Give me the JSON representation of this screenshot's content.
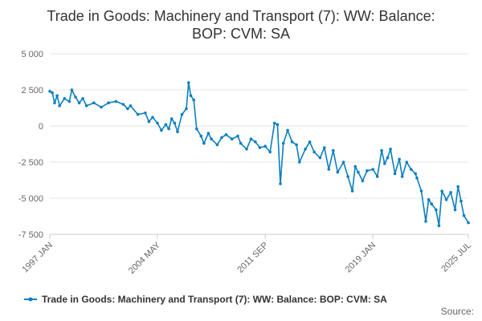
{
  "chart_data": {
    "type": "line",
    "title_lines": [
      "Trade in Goods: Machinery and Transport (7): WW: Balance:",
      "BOP: CVM: SA"
    ],
    "xlabel": "",
    "ylabel": "",
    "x_ticks": [
      {
        "label": "1997 JAN",
        "t": 1997.0
      },
      {
        "label": "2004 MAY",
        "t": 2004.33
      },
      {
        "label": "2011 SEP",
        "t": 2011.67
      },
      {
        "label": "2019 JAN",
        "t": 2019.0
      },
      {
        "label": "2025 JUL",
        "t": 2025.5
      }
    ],
    "y_ticks": [
      {
        "label": "5 000",
        "v": 5000
      },
      {
        "label": "2 500",
        "v": 2500
      },
      {
        "label": "0",
        "v": 0
      },
      {
        "label": "-2 500",
        "v": -2500
      },
      {
        "label": "-5 000",
        "v": -5000
      },
      {
        "label": "-7 500",
        "v": -7500
      }
    ],
    "ylim": [
      -7500,
      5000
    ],
    "xlim": [
      1997.0,
      2025.5
    ],
    "grid": "horizontal",
    "legend_position": "bottom-center",
    "series": [
      {
        "name": "Trade in Goods: Machinery and Transport (7): WW: Balance: BOP: CVM: SA",
        "color": "#0a7fbf",
        "points": [
          [
            1997.0,
            2400
          ],
          [
            1997.17,
            2300
          ],
          [
            1997.33,
            1600
          ],
          [
            1997.5,
            2100
          ],
          [
            1997.67,
            1400
          ],
          [
            1998.0,
            1900
          ],
          [
            1998.33,
            1700
          ],
          [
            1998.5,
            2500
          ],
          [
            1998.75,
            2000
          ],
          [
            1999.0,
            1600
          ],
          [
            1999.25,
            1900
          ],
          [
            1999.5,
            1400
          ],
          [
            2000.0,
            1600
          ],
          [
            2000.5,
            1300
          ],
          [
            2001.0,
            1600
          ],
          [
            2001.5,
            1700
          ],
          [
            2002.0,
            1500
          ],
          [
            2002.3,
            1200
          ],
          [
            2002.5,
            1400
          ],
          [
            2003.0,
            800
          ],
          [
            2003.5,
            900
          ],
          [
            2003.75,
            300
          ],
          [
            2004.0,
            600
          ],
          [
            2004.33,
            200
          ],
          [
            2004.6,
            -300
          ],
          [
            2004.9,
            100
          ],
          [
            2005.1,
            -200
          ],
          [
            2005.3,
            500
          ],
          [
            2005.5,
            200
          ],
          [
            2005.7,
            -400
          ],
          [
            2006.0,
            800
          ],
          [
            2006.3,
            1200
          ],
          [
            2006.45,
            3000
          ],
          [
            2006.6,
            2100
          ],
          [
            2006.8,
            1800
          ],
          [
            2007.0,
            -200
          ],
          [
            2007.3,
            -700
          ],
          [
            2007.5,
            -1200
          ],
          [
            2007.8,
            -500
          ],
          [
            2008.0,
            -900
          ],
          [
            2008.4,
            -1300
          ],
          [
            2008.7,
            -800
          ],
          [
            2009.0,
            -600
          ],
          [
            2009.4,
            -900
          ],
          [
            2009.8,
            -700
          ],
          [
            2010.0,
            -1200
          ],
          [
            2010.4,
            -1600
          ],
          [
            2010.7,
            -900
          ],
          [
            2011.0,
            -1100
          ],
          [
            2011.3,
            -1500
          ],
          [
            2011.67,
            -1400
          ],
          [
            2012.0,
            -1800
          ],
          [
            2012.3,
            200
          ],
          [
            2012.5,
            100
          ],
          [
            2012.7,
            -4000
          ],
          [
            2012.9,
            -1200
          ],
          [
            2013.2,
            -300
          ],
          [
            2013.5,
            -1100
          ],
          [
            2013.8,
            -1300
          ],
          [
            2014.0,
            -2500
          ],
          [
            2014.4,
            -1600
          ],
          [
            2014.7,
            -1100
          ],
          [
            2015.0,
            -1800
          ],
          [
            2015.4,
            -2200
          ],
          [
            2015.7,
            -1500
          ],
          [
            2016.0,
            -3000
          ],
          [
            2016.3,
            -1700
          ],
          [
            2016.6,
            -3200
          ],
          [
            2017.0,
            -2500
          ],
          [
            2017.3,
            -3500
          ],
          [
            2017.6,
            -4500
          ],
          [
            2017.8,
            -2800
          ],
          [
            2018.0,
            -3200
          ],
          [
            2018.3,
            -3800
          ],
          [
            2018.6,
            -3100
          ],
          [
            2019.0,
            -3000
          ],
          [
            2019.3,
            -3500
          ],
          [
            2019.6,
            -1700
          ],
          [
            2019.8,
            -2600
          ],
          [
            2020.0,
            -2200
          ],
          [
            2020.2,
            -1600
          ],
          [
            2020.5,
            -3300
          ],
          [
            2020.8,
            -2300
          ],
          [
            2021.0,
            -3500
          ],
          [
            2021.3,
            -2500
          ],
          [
            2021.6,
            -3000
          ],
          [
            2021.9,
            -3300
          ],
          [
            2022.0,
            -3600
          ],
          [
            2022.3,
            -4500
          ],
          [
            2022.6,
            -6600
          ],
          [
            2022.8,
            -5100
          ],
          [
            2023.0,
            -5400
          ],
          [
            2023.3,
            -5800
          ],
          [
            2023.5,
            -6900
          ],
          [
            2023.7,
            -4500
          ],
          [
            2024.0,
            -5100
          ],
          [
            2024.3,
            -4600
          ],
          [
            2024.6,
            -5800
          ],
          [
            2024.8,
            -4200
          ],
          [
            2025.0,
            -5200
          ],
          [
            2025.2,
            -6200
          ],
          [
            2025.5,
            -6700
          ]
        ]
      }
    ],
    "source": "Source:"
  }
}
